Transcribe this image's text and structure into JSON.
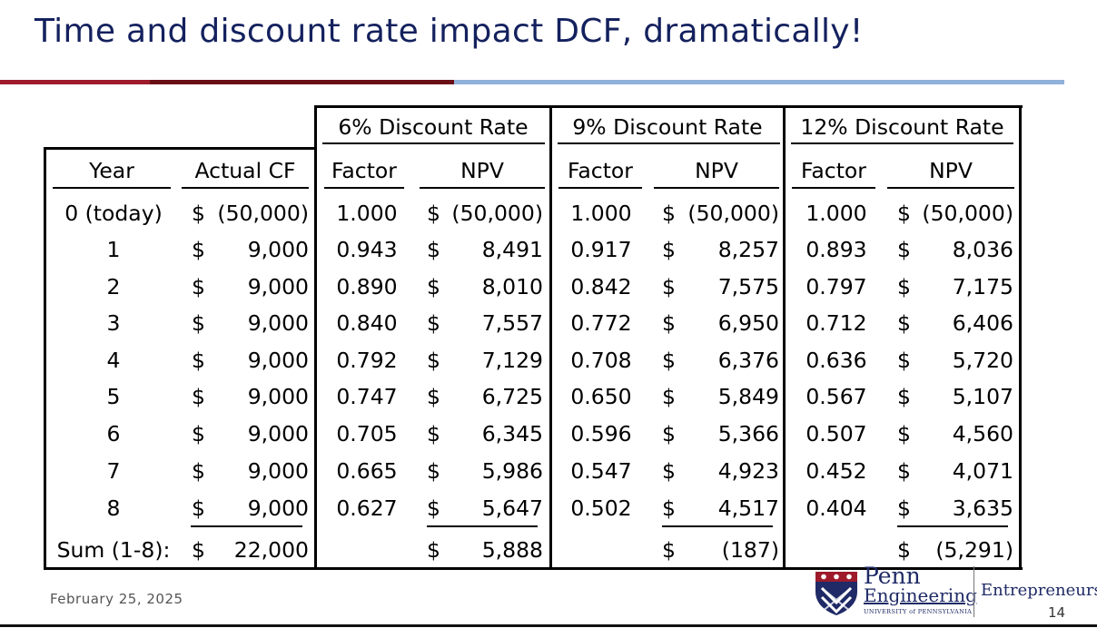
{
  "slide": {
    "title": "Time and discount rate impact DCF, dramatically!",
    "footer_date": "February 25, 2025",
    "page_number": "14",
    "logo": {
      "penn": "Penn",
      "engineering": "Engineering",
      "university": "UNIVERSITY of PENNSYLVANIA",
      "unit": "Entrepreneurship"
    },
    "colors": {
      "title": "#14215e",
      "bar_red": "#9e1b2c",
      "bar_dark_red": "#6b0f17",
      "bar_blue": "#8fb1da"
    }
  },
  "table": {
    "group_headers": [
      "6% Discount Rate",
      "9% Discount Rate",
      "12% Discount Rate"
    ],
    "col_headers": [
      "Year",
      "Actual CF",
      "Factor",
      "NPV",
      "Factor",
      "NPV",
      "Factor",
      "NPV"
    ],
    "rows": [
      {
        "year": "0 (today)",
        "cf": "(50,000)",
        "f6": "1.000",
        "n6": "(50,000)",
        "f9": "1.000",
        "n9": "(50,000)",
        "f12": "1.000",
        "n12": "(50,000)"
      },
      {
        "year": "1",
        "cf": "9,000",
        "f6": "0.943",
        "n6": "8,491",
        "f9": "0.917",
        "n9": "8,257",
        "f12": "0.893",
        "n12": "8,036"
      },
      {
        "year": "2",
        "cf": "9,000",
        "f6": "0.890",
        "n6": "8,010",
        "f9": "0.842",
        "n9": "7,575",
        "f12": "0.797",
        "n12": "7,175"
      },
      {
        "year": "3",
        "cf": "9,000",
        "f6": "0.840",
        "n6": "7,557",
        "f9": "0.772",
        "n9": "6,950",
        "f12": "0.712",
        "n12": "6,406"
      },
      {
        "year": "4",
        "cf": "9,000",
        "f6": "0.792",
        "n6": "7,129",
        "f9": "0.708",
        "n9": "6,376",
        "f12": "0.636",
        "n12": "5,720"
      },
      {
        "year": "5",
        "cf": "9,000",
        "f6": "0.747",
        "n6": "6,725",
        "f9": "0.650",
        "n9": "5,849",
        "f12": "0.567",
        "n12": "5,107"
      },
      {
        "year": "6",
        "cf": "9,000",
        "f6": "0.705",
        "n6": "6,345",
        "f9": "0.596",
        "n9": "5,366",
        "f12": "0.507",
        "n12": "4,560"
      },
      {
        "year": "7",
        "cf": "9,000",
        "f6": "0.665",
        "n6": "5,986",
        "f9": "0.547",
        "n9": "4,923",
        "f12": "0.452",
        "n12": "4,071"
      },
      {
        "year": "8",
        "cf": "9,000",
        "f6": "0.627",
        "n6": "5,647",
        "f9": "0.502",
        "n9": "4,517",
        "f12": "0.404",
        "n12": "3,635"
      }
    ],
    "sum_row": {
      "label": "Sum (1-8):",
      "cf": "22,000",
      "n6": "5,888",
      "n9": "(187)",
      "n12": "(5,291)"
    },
    "currency": "$"
  }
}
